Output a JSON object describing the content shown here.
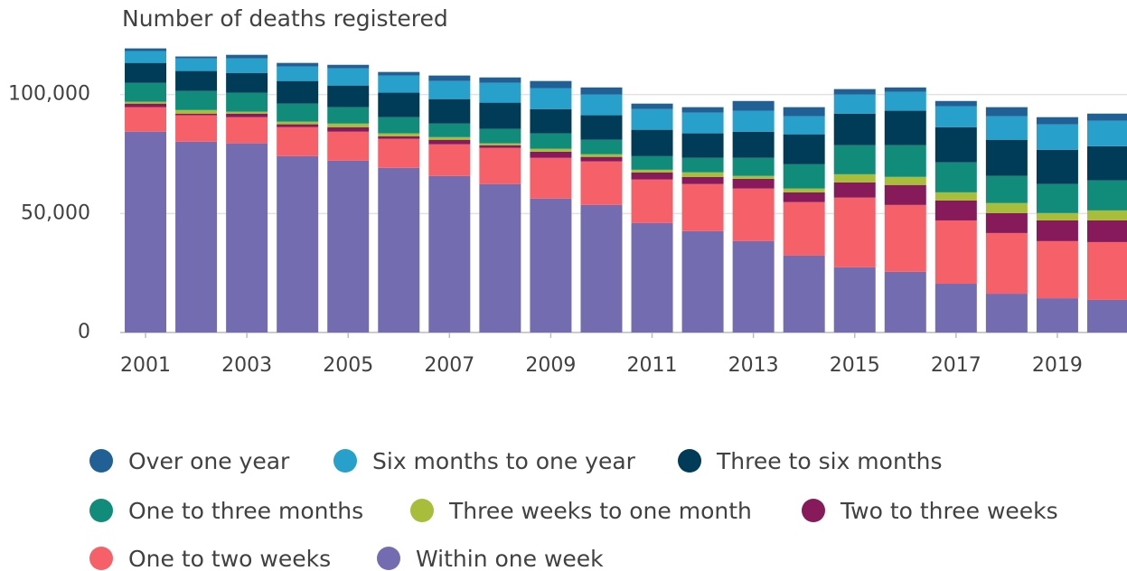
{
  "chart_data": {
    "type": "stacked_bar",
    "title": "Number of deaths registered",
    "categories": [
      "2001",
      null,
      "2003",
      null,
      "2005",
      null,
      "2007",
      null,
      "2009",
      null,
      "2011",
      null,
      "2013",
      null,
      "2015",
      null,
      "2017",
      null,
      "2019",
      null
    ],
    "ylim": [
      0,
      120000
    ],
    "yticks": [
      0,
      {
        "value": 50000,
        "label": "50,000"
      },
      {
        "value": 100000,
        "label": "100,000"
      }
    ],
    "grid": true,
    "legend": "bottom",
    "series": [
      {
        "name": "Within one week",
        "color": "#746cb1",
        "values": [
          84400,
          80200,
          79500,
          74100,
          72200,
          69200,
          65800,
          62400,
          56300,
          53600,
          46000,
          42600,
          38400,
          32300,
          27400,
          25500,
          20500,
          16300,
          14400,
          13700
        ]
      },
      {
        "name": "One to two weeks",
        "color": "#f66068",
        "values": [
          10300,
          11100,
          11000,
          12200,
          12200,
          12200,
          13300,
          15200,
          17100,
          18300,
          18300,
          19800,
          22100,
          22500,
          29300,
          28100,
          26600,
          25500,
          24000,
          24300
        ]
      },
      {
        "name": "Two to three weeks",
        "color": "#871a5b",
        "values": [
          1500,
          700,
          1500,
          1200,
          1900,
          1100,
          1900,
          1100,
          2600,
          1900,
          3000,
          3000,
          4100,
          4100,
          6400,
          8400,
          8400,
          8400,
          8700,
          9100
        ]
      },
      {
        "name": "Three weeks to one month",
        "color": "#a8bd3a",
        "values": [
          800,
          1500,
          800,
          1100,
          1500,
          1200,
          1100,
          800,
          1200,
          1100,
          1100,
          1900,
          1200,
          1600,
          3400,
          3400,
          3400,
          4200,
          3100,
          4200
        ]
      },
      {
        "name": "One to three months",
        "color": "#118c7b",
        "values": [
          7900,
          8000,
          8000,
          7600,
          6900,
          6800,
          5700,
          6100,
          6500,
          6100,
          5700,
          6100,
          7600,
          10200,
          12200,
          13300,
          12600,
          11400,
          12200,
          12600
        ]
      },
      {
        "name": "Three to six months",
        "color": "#003c57",
        "values": [
          8400,
          8400,
          8300,
          9500,
          9100,
          10300,
          10300,
          11000,
          10200,
          10300,
          11100,
          10300,
          11000,
          12600,
          13300,
          14500,
          14800,
          15200,
          14400,
          14400
        ]
      },
      {
        "name": "Six months to one year",
        "color": "#27a0cc",
        "values": [
          5000,
          5300,
          6100,
          6100,
          7200,
          7200,
          7600,
          8300,
          8800,
          8700,
          8700,
          8700,
          8800,
          7600,
          8000,
          7900,
          8800,
          9900,
          10700,
          10700
        ]
      },
      {
        "name": "Over one year",
        "color": "#206095",
        "values": [
          1100,
          800,
          1500,
          1500,
          1500,
          1500,
          2300,
          2300,
          3000,
          3000,
          2300,
          2300,
          4100,
          3800,
          2300,
          1900,
          2200,
          3800,
          3000,
          3000
        ]
      }
    ]
  }
}
